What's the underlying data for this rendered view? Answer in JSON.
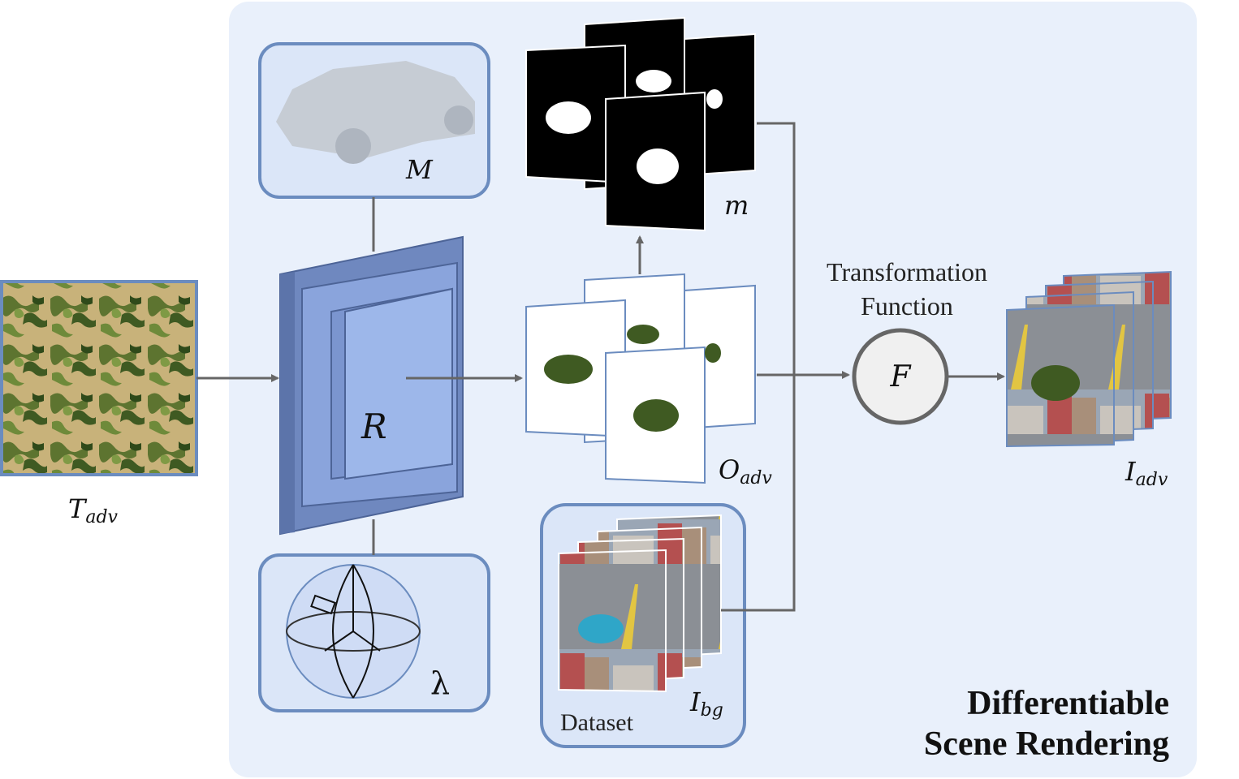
{
  "labels": {
    "texture": {
      "base": "T",
      "sub": "adv"
    },
    "mesh": "M",
    "renderer": "R",
    "camera_param": "λ",
    "masks": "m",
    "rendered_objects": {
      "base": "O",
      "sub": "adv"
    },
    "background": {
      "base": "I",
      "sub": "bg"
    },
    "dataset": "Dataset",
    "transform_title_line1": "Transformation",
    "transform_title_line2": "Function",
    "transform_symbol": "F",
    "output": {
      "base": "I",
      "sub": "adv"
    },
    "section_title_line1": "Differentiable",
    "section_title_line2": "Scene Rendering"
  },
  "colors": {
    "panel_bg": "#e9f0fb",
    "box_border": "#6b8cbf",
    "box_fill": "#dbe6f8",
    "renderer_dark": "#6f88bf",
    "renderer_mid": "#8aa4dc",
    "renderer_light": "#9db7ea",
    "arrow": "#666666"
  }
}
